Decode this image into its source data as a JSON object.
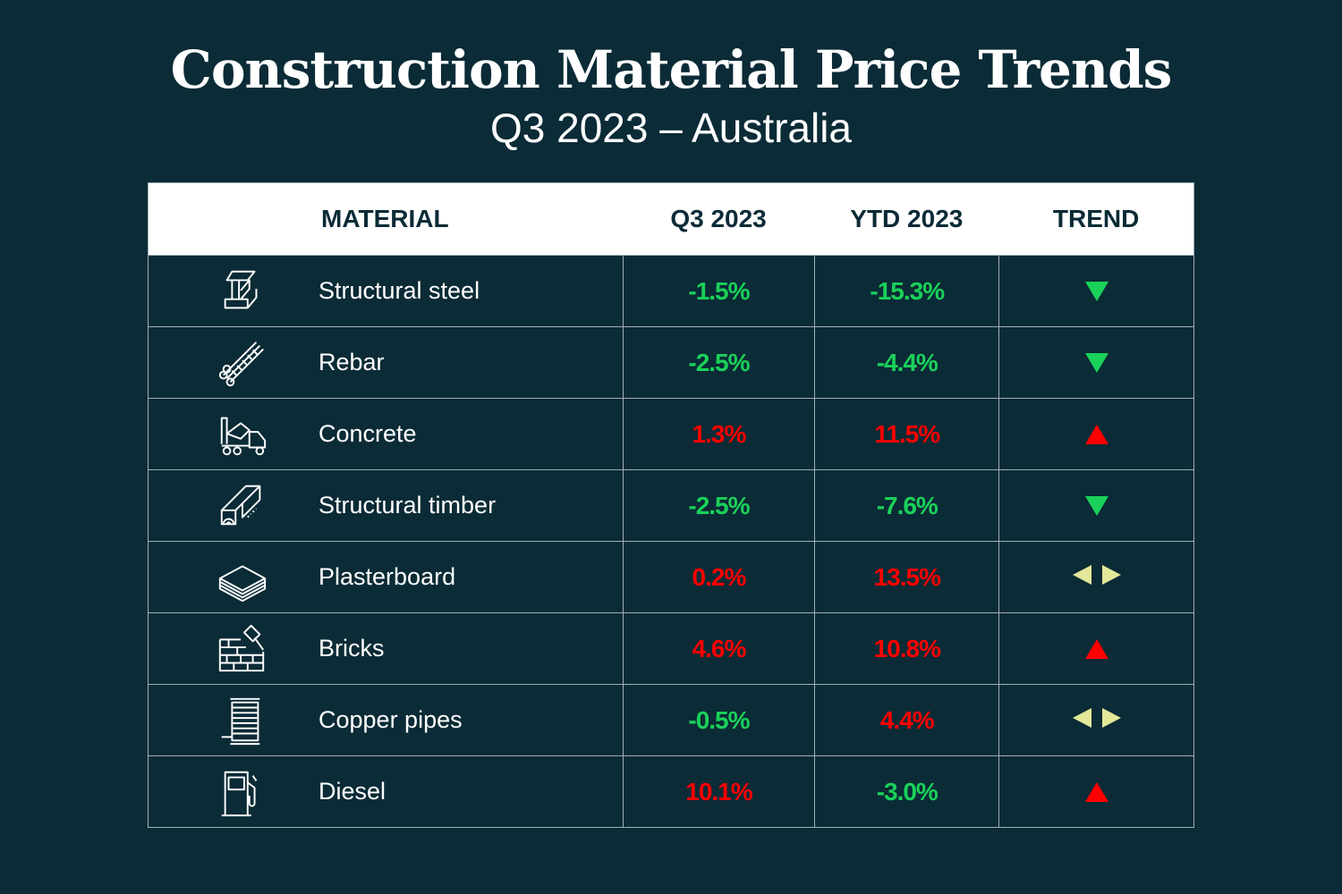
{
  "title": "Construction Material Price Trends",
  "subtitle": "Q3 2023 – Australia",
  "colors": {
    "background": "#0b2b36",
    "up": "#ff0000",
    "down": "#1ad15a",
    "flat": "#e3e89a",
    "header_bg": "#ffffff"
  },
  "chart_data": {
    "type": "table",
    "columns": [
      "MATERIAL",
      "Q3 2023",
      "YTD 2023",
      "TREND"
    ],
    "rows": [
      {
        "icon": "steel-beam-icon",
        "material": "Structural steel",
        "q3": "-1.5%",
        "ytd": "-15.3%",
        "trend": "down"
      },
      {
        "icon": "rebar-icon",
        "material": "Rebar",
        "q3": "-2.5%",
        "ytd": "-4.4%",
        "trend": "down"
      },
      {
        "icon": "concrete-mixer-truck-icon",
        "material": "Concrete",
        "q3": "1.3%",
        "ytd": "11.5%",
        "trend": "up"
      },
      {
        "icon": "timber-icon",
        "material": "Structural timber",
        "q3": "-2.5%",
        "ytd": "-7.6%",
        "trend": "down"
      },
      {
        "icon": "plasterboard-icon",
        "material": "Plasterboard",
        "q3": "0.2%",
        "ytd": "13.5%",
        "trend": "flat"
      },
      {
        "icon": "bricks-trowel-icon",
        "material": "Bricks",
        "q3": "4.6%",
        "ytd": "10.8%",
        "trend": "up"
      },
      {
        "icon": "copper-pipe-spool-icon",
        "material": "Copper pipes",
        "q3": "-0.5%",
        "ytd": "4.4%",
        "trend": "flat"
      },
      {
        "icon": "fuel-pump-icon",
        "material": "Diesel",
        "q3": "10.1%",
        "ytd": "-3.0%",
        "trend": "up"
      }
    ]
  }
}
